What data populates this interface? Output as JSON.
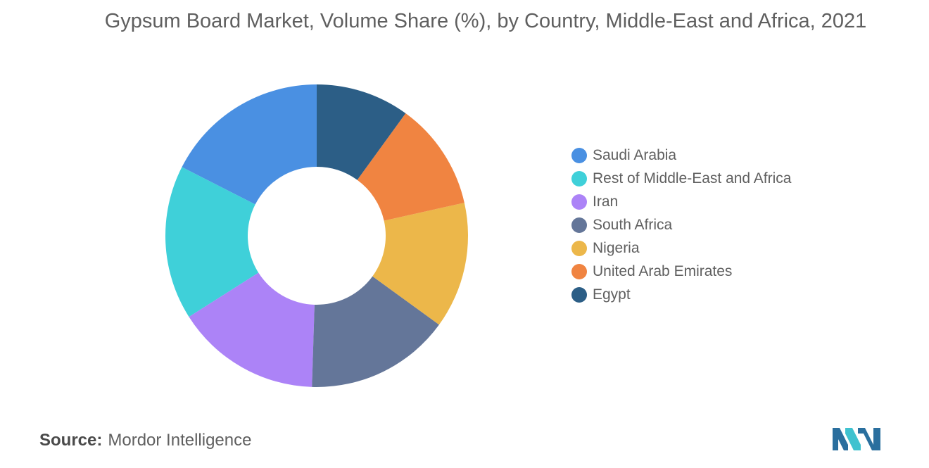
{
  "title": "Gypsum Board Market, Volume Share (%), by Country, Middle-East and Africa, 2021",
  "source_label": "Source:",
  "source_value": "Mordor Intelligence",
  "chart_data": {
    "type": "pie",
    "style": "donut",
    "title": "Gypsum Board Market, Volume Share (%), by Country, Middle-East and Africa, 2021",
    "legend_position": "right",
    "start_angle_deg": 90,
    "direction": "counter-clockwise",
    "categories": [
      "Saudi Arabia",
      "Rest of Middle-East and Africa",
      "Iran",
      "South Africa",
      "Nigeria",
      "United Arab Emirates",
      "Egypt"
    ],
    "values": [
      17.5,
      16.5,
      15.5,
      15.5,
      13.5,
      11.5,
      10.0
    ],
    "colors": [
      "#4a90e2",
      "#3fd0d9",
      "#ac83f7",
      "#647699",
      "#ecb74a",
      "#f08441",
      "#2c5e86"
    ]
  }
}
